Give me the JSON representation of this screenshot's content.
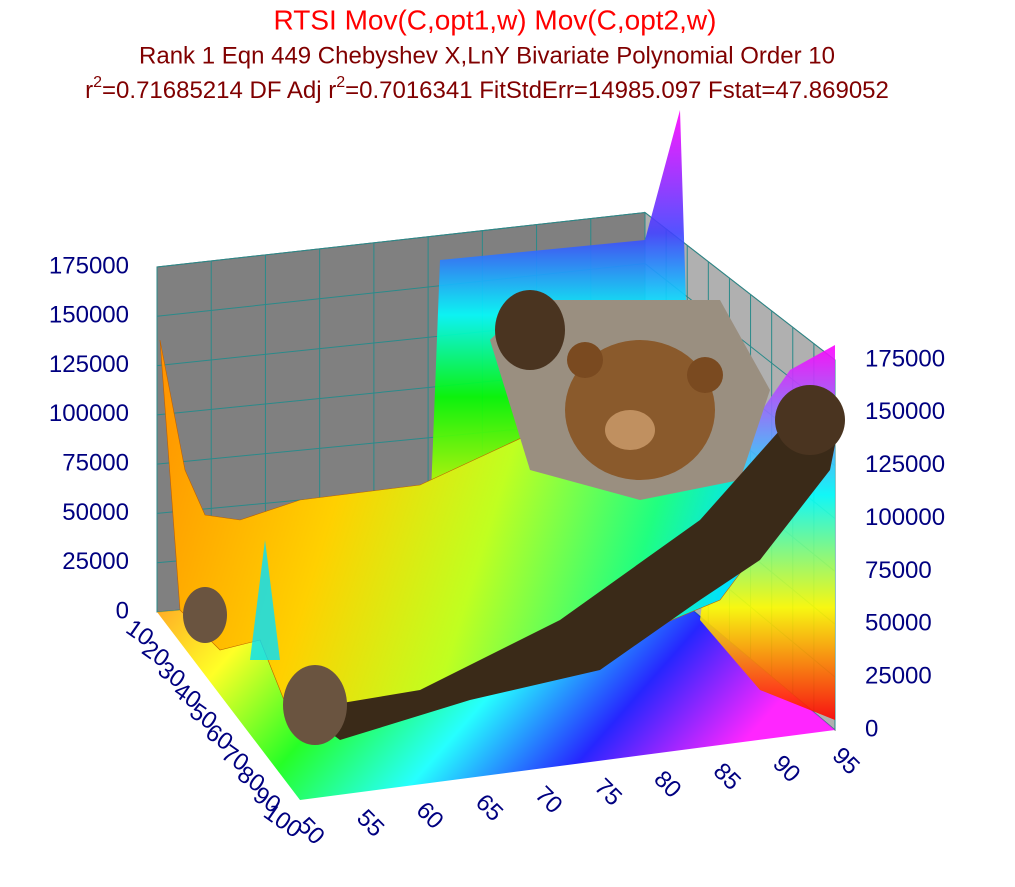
{
  "chart_data": {
    "type": "surface3d",
    "title": "RTSI Mov(C,opt1,w) Mov(C,opt2,w)",
    "subtitle": "Rank 1  Eqn 449  Chebyshev X,LnY Bivariate Polynomial Order 10",
    "stats_text": [
      "r",
      "2",
      "=0.71685214  DF Adj r",
      "2",
      "=0.7016341  FitStdErr=14985.097  Fstat=47.869052"
    ],
    "xlim": [
      10,
      100
    ],
    "xticks": [
      10,
      20,
      30,
      40,
      50,
      60,
      70,
      80,
      90,
      100
    ],
    "ylim": [
      50,
      95
    ],
    "yticks": [
      50,
      55,
      60,
      65,
      70,
      75,
      80,
      85,
      90,
      95
    ],
    "zlim": [
      0,
      175000
    ],
    "zticks": [
      0,
      25000,
      50000,
      75000,
      100000,
      125000,
      150000,
      175000
    ],
    "grid": true
  }
}
